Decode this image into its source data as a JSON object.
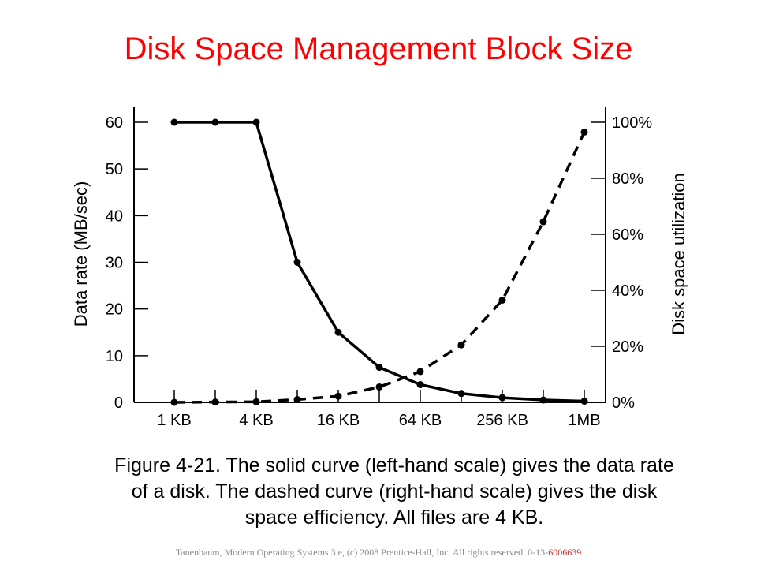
{
  "slide": {
    "title": "Disk Space Management Block Size",
    "caption_lines": [
      "Figure 4-21. The solid curve (left-hand scale) gives the data rate",
      "of a disk. The dashed curve (right-hand scale) gives the disk",
      "space efficiency. All files are 4 KB."
    ],
    "footer_text": "Tanenbaum, Modern Operating Systems 3 e, (c) 2008 Prentice-Hall, Inc. All rights reserved. 0-13-",
    "footer_isbn_tail": "6006639",
    "title_color": "#ff0000"
  },
  "chart_data": {
    "type": "line",
    "xlabel": "",
    "ylabel": "Data rate (MB/sec)",
    "y2label": "Disk space utilization",
    "x_tick_labels": [
      "1 KB",
      "4 KB",
      "16 KB",
      "64 KB",
      "256 KB",
      "1MB"
    ],
    "x_points": [
      "1 KB",
      "2 KB",
      "4 KB",
      "8 KB",
      "16 KB",
      "32 KB",
      "64 KB",
      "128 KB",
      "256 KB",
      "512 KB",
      "1MB"
    ],
    "ylim": [
      0,
      60
    ],
    "y_ticks": [
      "0",
      "10",
      "20",
      "30",
      "40",
      "50",
      "60"
    ],
    "y2lim": [
      0,
      100
    ],
    "y2_ticks": [
      "0%",
      "20%",
      "40%",
      "60%",
      "80%",
      "100%"
    ],
    "grid": false,
    "series": [
      {
        "axis": "left",
        "style": "solid",
        "values": [
          60,
          60,
          60,
          30,
          15,
          7.5,
          3.8,
          1.9,
          1,
          0.5,
          0.25
        ]
      },
      {
        "axis": "right",
        "style": "dashed",
        "values": [
          0,
          0.1,
          0.2,
          1,
          2.2,
          5.5,
          11,
          20.5,
          36.5,
          64.5,
          96.5
        ]
      }
    ]
  }
}
